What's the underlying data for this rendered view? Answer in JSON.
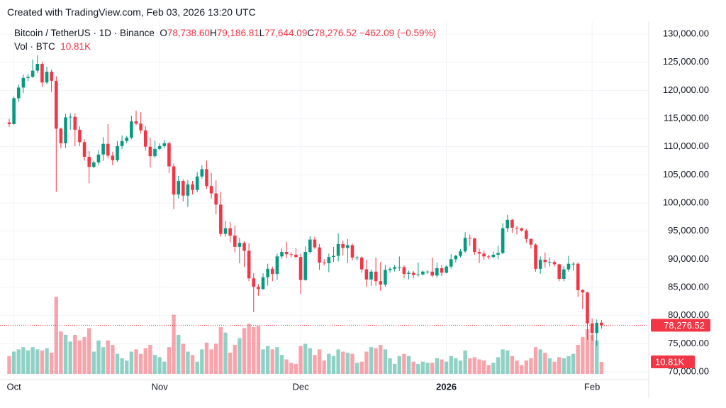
{
  "header": {
    "watermark": "Created with TradingView.com, Feb 03, 2026 13:20 UTC",
    "symbol": "Bitcoin / TetherUS · 1D · Binance",
    "ohlc": [
      {
        "key": "O",
        "value": "78,738.60"
      },
      {
        "key": "H",
        "value": "79,186.81"
      },
      {
        "key": "L",
        "value": "77,644.09"
      }
    ],
    "close_key": "C",
    "change": "−462.09 (−0.59%)",
    "volume_name": "Vol · BTC"
  },
  "chart_data": {
    "type": "candlestick",
    "up_color": "#089981",
    "down_color": "#f23645",
    "volume_up_color": "rgba(8,153,129,0.45)",
    "volume_down_color": "rgba(242,54,69,0.45)",
    "grid": true,
    "ylim": [
      70000,
      130000
    ],
    "yticks": [
      {
        "value": 70000,
        "label": "70,000.00"
      },
      {
        "value": 75000,
        "label": "75,000.00"
      },
      {
        "value": 80000,
        "label": "80,000.00"
      },
      {
        "value": 85000,
        "label": "85,000.00"
      },
      {
        "value": 90000,
        "label": "90,000.00"
      },
      {
        "value": 95000,
        "label": "95,000.00"
      },
      {
        "value": 100000,
        "label": "100,000.00"
      },
      {
        "value": 105000,
        "label": "105,000.00"
      },
      {
        "value": 110000,
        "label": "110,000.00"
      },
      {
        "value": 115000,
        "label": "115,000.00"
      },
      {
        "value": 120000,
        "label": "120,000.00"
      },
      {
        "value": 125000,
        "label": "125,000.00"
      },
      {
        "value": 130000,
        "label": "130,000.00"
      }
    ],
    "volume_lim": [
      0,
      80
    ],
    "last_price_label": "78,276.52",
    "last_volume_label": "10.81K",
    "categories": [
      null,
      "Oct",
      null,
      null,
      null,
      null,
      null,
      null,
      null,
      null,
      null,
      null,
      null,
      null,
      null,
      null,
      null,
      null,
      null,
      null,
      null,
      null,
      null,
      null,
      null,
      null,
      null,
      null,
      null,
      null,
      null,
      null,
      "Nov",
      null,
      null,
      null,
      null,
      null,
      null,
      null,
      null,
      null,
      null,
      null,
      null,
      null,
      null,
      null,
      null,
      null,
      null,
      null,
      null,
      null,
      null,
      null,
      null,
      null,
      null,
      null,
      null,
      null,
      "Dec",
      null,
      null,
      null,
      null,
      null,
      null,
      null,
      null,
      null,
      null,
      null,
      null,
      null,
      null,
      null,
      null,
      null,
      null,
      null,
      null,
      null,
      null,
      null,
      null,
      null,
      null,
      null,
      null,
      null,
      null,
      "2026",
      null,
      null,
      null,
      null,
      null,
      null,
      null,
      null,
      null,
      null,
      null,
      null,
      null,
      null,
      null,
      null,
      null,
      null,
      null,
      null,
      null,
      null,
      null,
      null,
      null,
      null,
      null,
      null,
      null,
      null,
      "Feb",
      null,
      null
    ],
    "open": [
      114300,
      114000,
      118600,
      120500,
      122200,
      122400,
      123500,
      124700,
      121400,
      123300,
      121700,
      113200,
      110600,
      115200,
      115300,
      113000,
      110800,
      108200,
      106400,
      107200,
      108600,
      110500,
      108400,
      107600,
      110100,
      111000,
      111600,
      114500,
      114100,
      112900,
      110000,
      108300,
      109600,
      110100,
      110600,
      106500,
      101500,
      103900,
      101300,
      103300,
      102300,
      104700,
      106000,
      103000,
      101700,
      99700,
      94500,
      95500,
      94200,
      92200,
      92900,
      91500,
      86600,
      85100,
      84700,
      86800,
      88300,
      87400,
      90500,
      91300,
      90900,
      90800,
      90400,
      86300,
      91300,
      93500,
      92100,
      89400,
      89300,
      90400,
      90600,
      92700,
      92000,
      92500,
      90300,
      90300,
      88200,
      86400,
      87800,
      86100,
      85500,
      88100,
      88300,
      88600,
      88600,
      87400,
      87600,
      87200,
      87300,
      87800,
      87800,
      87100,
      88400,
      87600,
      88700,
      90000,
      90600,
      91400,
      93800,
      93700,
      91300,
      91000,
      90500,
      90400,
      90800,
      91100,
      95500,
      97000,
      95600,
      95500,
      95100,
      93600,
      92600,
      88300,
      89900,
      89500,
      89500,
      89100,
      86500,
      88200,
      89200,
      89200,
      84500,
      84100,
      78600,
      76900,
      78738.6
    ],
    "high": [
      114900,
      118900,
      121000,
      122800,
      122900,
      125500,
      126200,
      125100,
      124200,
      123700,
      122500,
      113400,
      115800,
      115900,
      115900,
      113600,
      111300,
      109200,
      107500,
      109400,
      111700,
      114000,
      109100,
      111000,
      112000,
      111900,
      115500,
      116400,
      116100,
      113600,
      111600,
      111100,
      110600,
      111200,
      110900,
      107000,
      104800,
      104200,
      104100,
      103900,
      105500,
      106700,
      107500,
      105300,
      104000,
      102000,
      96800,
      96600,
      96000,
      93800,
      93200,
      92800,
      87500,
      85600,
      87500,
      89200,
      88700,
      91000,
      91900,
      93100,
      91200,
      92000,
      91000,
      92300,
      94100,
      94000,
      92700,
      90000,
      91000,
      92200,
      94600,
      93300,
      93600,
      92800,
      90600,
      90500,
      89900,
      88200,
      90300,
      89500,
      89000,
      88600,
      89000,
      90500,
      88900,
      88000,
      87900,
      89400,
      88000,
      88000,
      90300,
      89400,
      89000,
      88900,
      90900,
      90800,
      91800,
      94800,
      94400,
      93800,
      91900,
      91500,
      90800,
      91400,
      92400,
      96400,
      97900,
      97200,
      95900,
      95600,
      95400,
      93700,
      92800,
      90500,
      91200,
      90300,
      89800,
      89200,
      88800,
      90600,
      89500,
      89400,
      84700,
      84200,
      79500,
      79300,
      79186.81
    ],
    "low": [
      113500,
      113900,
      117900,
      119500,
      121600,
      122200,
      123100,
      120600,
      121100,
      119700,
      102000,
      109700,
      109800,
      113000,
      110100,
      110100,
      107500,
      103500,
      106200,
      106700,
      107500,
      107900,
      106700,
      107300,
      109600,
      110600,
      111300,
      113800,
      112300,
      109300,
      106300,
      108000,
      109400,
      109700,
      105300,
      98900,
      100800,
      100300,
      99300,
      101500,
      101900,
      104300,
      102500,
      100800,
      98000,
      94000,
      94000,
      93000,
      91200,
      89300,
      88600,
      86100,
      80600,
      83500,
      84600,
      85300,
      86100,
      86300,
      90100,
      90200,
      90300,
      90200,
      83800,
      86200,
      91000,
      91800,
      88100,
      88900,
      87700,
      89500,
      89600,
      90700,
      89300,
      89800,
      89800,
      87600,
      85100,
      85300,
      85300,
      84400,
      85100,
      87600,
      87800,
      87900,
      86600,
      86400,
      86600,
      86900,
      87100,
      87400,
      86800,
      86700,
      87000,
      87500,
      88300,
      89400,
      90300,
      91100,
      92400,
      90800,
      89300,
      89900,
      90000,
      90200,
      90000,
      90900,
      94800,
      94700,
      94400,
      94900,
      92900,
      91900,
      87800,
      87400,
      88500,
      88700,
      88700,
      86100,
      86100,
      87800,
      88000,
      83300,
      81100,
      75700,
      75500,
      74600,
      77644.09
    ],
    "close": [
      114000,
      118600,
      120500,
      122200,
      122400,
      123500,
      124700,
      121400,
      123300,
      121700,
      113200,
      110600,
      115200,
      115300,
      113000,
      110800,
      108200,
      106400,
      107200,
      108600,
      110500,
      108400,
      107600,
      110100,
      111000,
      111600,
      114500,
      114100,
      112900,
      110000,
      108300,
      109600,
      110100,
      110600,
      106500,
      101500,
      103900,
      101300,
      103300,
      102300,
      104700,
      106000,
      103000,
      101700,
      99700,
      94500,
      95500,
      94200,
      92200,
      92900,
      91500,
      86600,
      85100,
      84700,
      86800,
      88300,
      87400,
      90500,
      91300,
      90900,
      90800,
      90400,
      86300,
      91300,
      93500,
      92100,
      89400,
      89300,
      90400,
      90600,
      92700,
      92000,
      92500,
      90300,
      90300,
      88200,
      86400,
      87800,
      86100,
      85500,
      88100,
      88300,
      88600,
      88600,
      87400,
      87600,
      87200,
      87300,
      87800,
      87800,
      87100,
      88400,
      87600,
      88700,
      90000,
      90600,
      91400,
      93800,
      93700,
      91300,
      91000,
      90500,
      90400,
      90800,
      91100,
      95500,
      97000,
      95600,
      95500,
      95100,
      93600,
      92600,
      88300,
      89900,
      89500,
      89500,
      89100,
      86500,
      88200,
      89200,
      89200,
      84500,
      84100,
      78600,
      76900,
      78700,
      78276.52
    ],
    "volume": [
      16,
      20,
      22,
      24,
      21,
      24,
      22,
      21,
      23,
      19,
      69,
      38,
      35,
      29,
      35,
      30,
      33,
      41,
      20,
      30,
      24,
      30,
      26,
      18,
      14,
      12,
      20,
      22,
      18,
      23,
      26,
      17,
      15,
      11,
      24,
      53,
      35,
      27,
      20,
      17,
      11,
      22,
      28,
      22,
      27,
      42,
      37,
      19,
      26,
      32,
      41,
      45,
      42,
      43,
      22,
      25,
      22,
      24,
      17,
      13,
      10,
      9,
      25,
      27,
      23,
      17,
      22,
      12,
      18,
      16,
      22,
      20,
      19,
      18,
      10,
      11,
      20,
      24,
      23,
      26,
      22,
      14,
      9,
      16,
      18,
      16,
      11,
      9,
      11,
      10,
      10,
      14,
      13,
      11,
      16,
      14,
      12,
      21,
      14,
      15,
      13,
      12,
      8,
      10,
      15,
      22,
      21,
      16,
      12,
      8,
      12,
      14,
      24,
      22,
      19,
      14,
      11,
      15,
      14,
      16,
      18,
      26,
      33,
      40,
      35,
      30,
      10.81
    ]
  }
}
